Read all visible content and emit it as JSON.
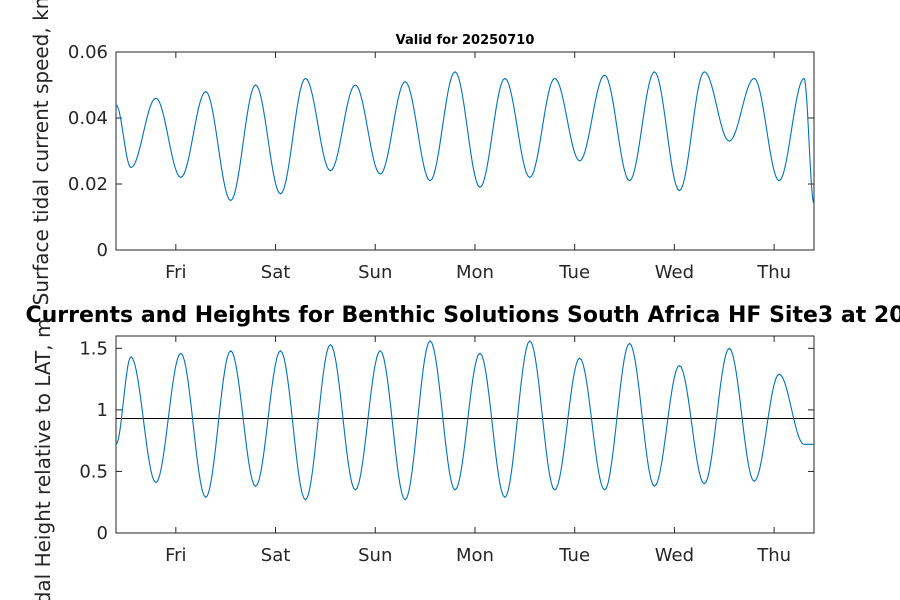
{
  "chart_data": [
    {
      "type": "line",
      "title": "Valid for 20250710",
      "ylabel": "Surface tidal current speed, kn",
      "xlabel": "",
      "x_tick_labels": [
        "Fri",
        "Sat",
        "Sun",
        "Mon",
        "Tue",
        "Wed",
        "Thu"
      ],
      "y_tick_labels": [
        "0",
        "0.02",
        "0.04",
        "0.06"
      ],
      "ylim": [
        0,
        0.06
      ],
      "xlim": [
        0,
        7
      ],
      "color": "#0072bd",
      "grid": false,
      "series": [
        {
          "x": [
            0.0,
            0.15,
            0.4,
            0.65,
            0.9,
            1.15,
            1.4,
            1.65,
            1.9,
            2.15,
            2.4,
            2.65,
            2.9,
            3.15,
            3.4,
            3.65,
            3.9,
            4.15,
            4.4,
            4.65,
            4.9,
            5.15,
            5.4,
            5.65,
            5.9,
            6.15,
            6.4,
            6.65,
            6.9,
            7.0
          ],
          "y": [
            0.044,
            0.025,
            0.046,
            0.022,
            0.048,
            0.015,
            0.05,
            0.017,
            0.052,
            0.024,
            0.05,
            0.023,
            0.051,
            0.021,
            0.054,
            0.019,
            0.052,
            0.022,
            0.052,
            0.027,
            0.053,
            0.021,
            0.054,
            0.018,
            0.054,
            0.033,
            0.052,
            0.021,
            0.052,
            0.014
          ]
        }
      ]
    },
    {
      "type": "line",
      "title": "Currents and Heights for Benthic Solutions South Africa HF Site3 at 20",
      "ylabel": "Tidal Height relative to LAT, m",
      "xlabel": "",
      "x_tick_labels": [
        "Fri",
        "Sat",
        "Sun",
        "Mon",
        "Tue",
        "Wed",
        "Thu"
      ],
      "y_tick_labels": [
        "0",
        "0.5",
        "1",
        "1.5"
      ],
      "ylim": [
        0,
        1.6
      ],
      "xlim": [
        0,
        7
      ],
      "reference_line": 0.93,
      "color": "#0072bd",
      "grid": false,
      "series": [
        {
          "x": [
            0.0,
            0.15,
            0.4,
            0.65,
            0.9,
            1.15,
            1.4,
            1.65,
            1.9,
            2.15,
            2.4,
            2.65,
            2.9,
            3.15,
            3.4,
            3.65,
            3.9,
            4.15,
            4.4,
            4.65,
            4.9,
            5.15,
            5.4,
            5.65,
            5.9,
            6.15,
            6.4,
            6.65,
            6.9,
            7.0
          ],
          "y": [
            0.72,
            1.43,
            0.41,
            1.46,
            0.29,
            1.48,
            0.38,
            1.48,
            0.27,
            1.53,
            0.35,
            1.48,
            0.27,
            1.56,
            0.35,
            1.46,
            0.29,
            1.56,
            0.35,
            1.42,
            0.35,
            1.54,
            0.38,
            1.36,
            0.4,
            1.5,
            0.42,
            1.29,
            0.72,
            0.72
          ]
        }
      ]
    }
  ]
}
